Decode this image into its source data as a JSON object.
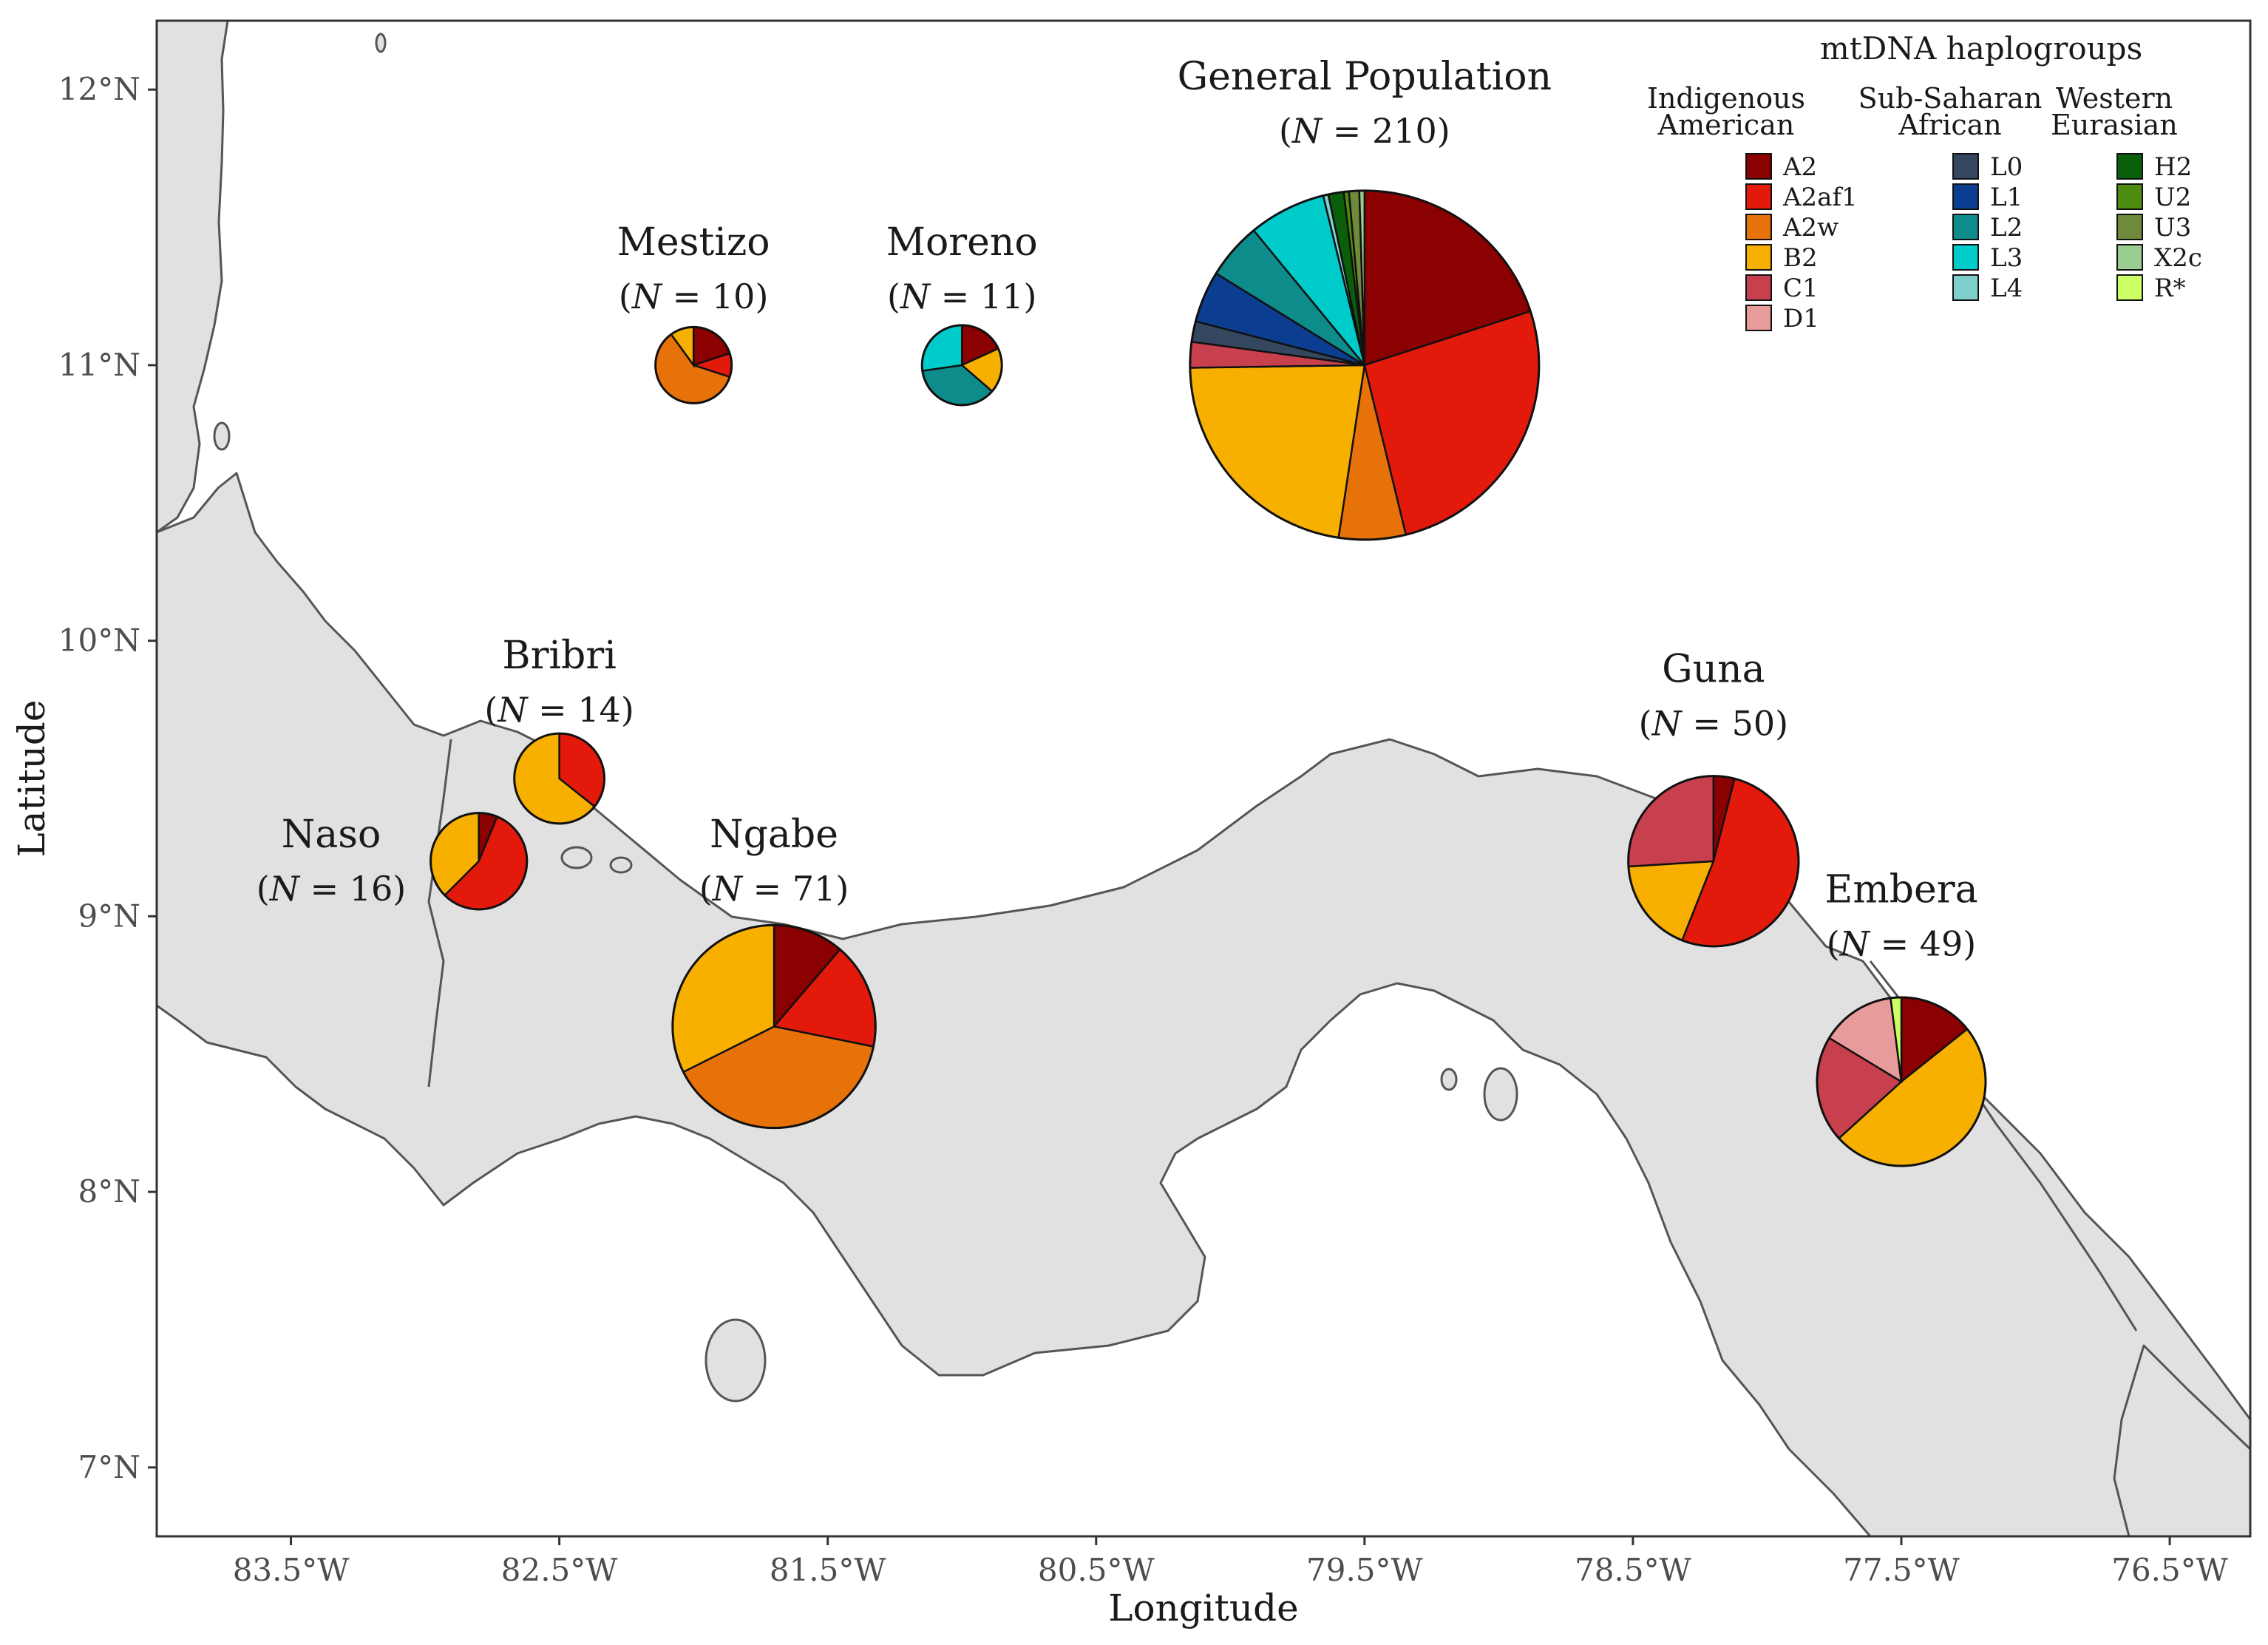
{
  "chart_data": {
    "type": "map-pie",
    "xlabel": "Longitude",
    "ylabel": "Latitude",
    "xlim": [
      -84.0,
      -76.2
    ],
    "ylim": [
      6.75,
      12.25
    ],
    "x_ticks": [
      {
        "value": -83.5,
        "label": "83.5°W"
      },
      {
        "value": -82.5,
        "label": "82.5°W"
      },
      {
        "value": -81.5,
        "label": "81.5°W"
      },
      {
        "value": -80.5,
        "label": "80.5°W"
      },
      {
        "value": -79.5,
        "label": "79.5°W"
      },
      {
        "value": -78.5,
        "label": "78.5°W"
      },
      {
        "value": -77.5,
        "label": "77.5°W"
      },
      {
        "value": -76.5,
        "label": "76.5°W"
      }
    ],
    "y_ticks": [
      {
        "value": 7,
        "label": "7°N"
      },
      {
        "value": 8,
        "label": "8°N"
      },
      {
        "value": 9,
        "label": "9°N"
      },
      {
        "value": 10,
        "label": "10°N"
      },
      {
        "value": 11,
        "label": "11°N"
      },
      {
        "value": 12,
        "label": "12°N"
      }
    ],
    "legend": {
      "title": "mtDNA haplogroups",
      "groups": [
        {
          "name": "Indigenous American",
          "line1": "Indigenous",
          "line2": "American",
          "items": [
            {
              "label": "A2",
              "color": "#8B0000"
            },
            {
              "label": "A2af1",
              "color": "#E31A0B"
            },
            {
              "label": "A2w",
              "color": "#E8720A"
            },
            {
              "label": "B2",
              "color": "#F7B000"
            },
            {
              "label": "C1",
              "color": "#C8404D"
            },
            {
              "label": "D1",
              "color": "#E89B9B"
            }
          ]
        },
        {
          "name": "Sub-Saharan African",
          "line1": "Sub-Saharan",
          "line2": "African",
          "items": [
            {
              "label": "L0",
              "color": "#34475E"
            },
            {
              "label": "L1",
              "color": "#0B3D91"
            },
            {
              "label": "L2",
              "color": "#0E8C8C"
            },
            {
              "label": "L3",
              "color": "#00CBCB"
            },
            {
              "label": "L4",
              "color": "#7FCFCF"
            }
          ]
        },
        {
          "name": "Western Eurasian",
          "line1": "Western",
          "line2": "Eurasian",
          "items": [
            {
              "label": "H2",
              "color": "#0A5F0A"
            },
            {
              "label": "U2",
              "color": "#4C8C0F"
            },
            {
              "label": "U3",
              "color": "#6E8A3A"
            },
            {
              "label": "X2c",
              "color": "#9ACD8F"
            },
            {
              "label": "R*",
              "color": "#CCFF66"
            }
          ]
        }
      ]
    },
    "populations": [
      {
        "name": "General Population",
        "n_label": "210",
        "lon": -79.5,
        "lat": 11.0,
        "n": 210,
        "label_lon": -79.5,
        "label_lat": 12.0,
        "slices": [
          {
            "hg": "A2",
            "value": 42
          },
          {
            "hg": "A2af1",
            "value": 55
          },
          {
            "hg": "A2w",
            "value": 13
          },
          {
            "hg": "B2",
            "value": 47
          },
          {
            "hg": "C1",
            "value": 5
          },
          {
            "hg": "L0",
            "value": 4
          },
          {
            "hg": "L1",
            "value": 10
          },
          {
            "hg": "L2",
            "value": 11
          },
          {
            "hg": "L3",
            "value": 15
          },
          {
            "hg": "L4",
            "value": 1
          },
          {
            "hg": "H2",
            "value": 3
          },
          {
            "hg": "U2",
            "value": 1
          },
          {
            "hg": "U3",
            "value": 2
          },
          {
            "hg": "X2c",
            "value": 1
          }
        ]
      },
      {
        "name": "Mestizo",
        "n_label": "10",
        "lon": -82.0,
        "lat": 11.0,
        "n": 10,
        "label_lon": -82.0,
        "label_lat": 11.4,
        "slices": [
          {
            "hg": "A2",
            "value": 2
          },
          {
            "hg": "A2af1",
            "value": 1
          },
          {
            "hg": "A2w",
            "value": 6
          },
          {
            "hg": "B2",
            "value": 1
          }
        ]
      },
      {
        "name": "Moreno",
        "n_label": "11",
        "lon": -81.0,
        "lat": 11.0,
        "n": 11,
        "label_lon": -81.0,
        "label_lat": 11.4,
        "slices": [
          {
            "hg": "A2",
            "value": 2
          },
          {
            "hg": "B2",
            "value": 2
          },
          {
            "hg": "L2",
            "value": 4
          },
          {
            "hg": "L3",
            "value": 3
          }
        ]
      },
      {
        "name": "Bribri",
        "n_label": "14",
        "lon": -82.5,
        "lat": 9.5,
        "n": 14,
        "label_lon": -82.5,
        "label_lat": 9.9,
        "slices": [
          {
            "hg": "A2af1",
            "value": 5
          },
          {
            "hg": "B2",
            "value": 9
          }
        ]
      },
      {
        "name": "Naso",
        "n_label": "16",
        "lon": -82.8,
        "lat": 9.2,
        "n": 16,
        "label_lon": -83.35,
        "label_lat": 9.25,
        "slices": [
          {
            "hg": "A2",
            "value": 1
          },
          {
            "hg": "A2af1",
            "value": 9
          },
          {
            "hg": "B2",
            "value": 6
          }
        ]
      },
      {
        "name": "Ngabe",
        "n_label": "71",
        "lon": -81.7,
        "lat": 8.6,
        "n": 71,
        "label_lon": -81.7,
        "label_lat": 9.25,
        "slices": [
          {
            "hg": "A2",
            "value": 8
          },
          {
            "hg": "A2af1",
            "value": 12
          },
          {
            "hg": "A2w",
            "value": 28
          },
          {
            "hg": "B2",
            "value": 23
          }
        ]
      },
      {
        "name": "Guna",
        "n_label": "50",
        "lon": -78.2,
        "lat": 9.2,
        "n": 50,
        "label_lon": -78.2,
        "label_lat": 9.85,
        "slices": [
          {
            "hg": "A2",
            "value": 2
          },
          {
            "hg": "A2af1",
            "value": 26
          },
          {
            "hg": "B2",
            "value": 9
          },
          {
            "hg": "C1",
            "value": 13
          }
        ]
      },
      {
        "name": "Embera",
        "n_label": "49",
        "lon": -77.5,
        "lat": 8.4,
        "n": 49,
        "label_lon": -77.5,
        "label_lat": 9.05,
        "slices": [
          {
            "hg": "A2",
            "value": 7
          },
          {
            "hg": "B2",
            "value": 24
          },
          {
            "hg": "C1",
            "value": 10
          },
          {
            "hg": "D1",
            "value": 7
          },
          {
            "hg": "R*",
            "value": 1
          }
        ]
      }
    ]
  }
}
